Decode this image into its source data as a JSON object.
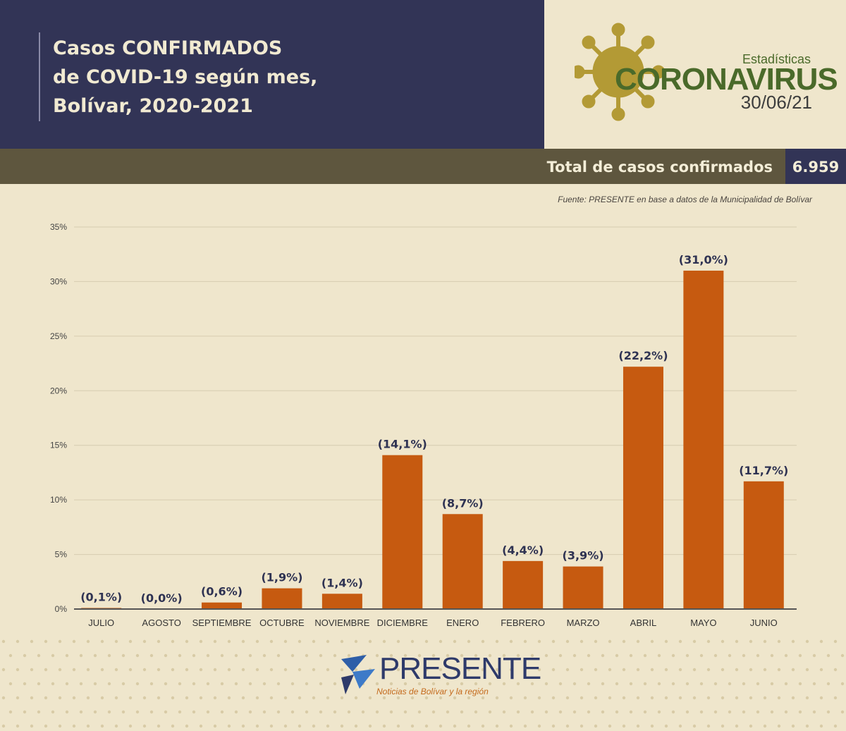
{
  "header": {
    "title_lines": [
      "Casos CONFIRMADOS",
      "de COVID-19 según mes,",
      "Bolívar, 2020-2021"
    ],
    "stat_label": "Estadísticas",
    "corona_word": "CORONAVIRUS",
    "date": "30/06/21"
  },
  "total": {
    "label": "Total de casos confirmados",
    "value": "6.959"
  },
  "source": "Fuente: PRESENTE en base a datos de la Municipalidad de Bolívar",
  "brand": {
    "name": "PRESENTE",
    "tagline": "Noticias de Bolívar y la región"
  },
  "colors": {
    "bar": "#c65a10",
    "header_navy": "#323456",
    "band": "#5e563e",
    "background": "#efe6cc"
  },
  "chart_data": {
    "type": "bar",
    "categories": [
      "JULIO",
      "AGOSTO",
      "SEPTIEMBRE",
      "OCTUBRE",
      "NOVIEMBRE",
      "DICIEMBRE",
      "ENERO",
      "FEBRERO",
      "MARZO",
      "ABRIL",
      "MAYO",
      "JUNIO"
    ],
    "values": [
      0.1,
      0.0,
      0.6,
      1.9,
      1.4,
      14.1,
      8.7,
      4.4,
      3.9,
      22.2,
      31.0,
      11.7
    ],
    "value_labels": [
      "(0,1%)",
      "(0,0%)",
      "(0,6%)",
      "(1,9%)",
      "(1,4%)",
      "(14,1%)",
      "(8,7%)",
      "(4,4%)",
      "(3,9%)",
      "(22,2%)",
      "(31,0%)",
      "(11,7%)"
    ],
    "y_ticks": [
      "0%",
      "5%",
      "10%",
      "15%",
      "20%",
      "25%",
      "30%",
      "35%"
    ],
    "ylim": [
      0,
      35
    ],
    "grid": true,
    "legend": "none"
  }
}
